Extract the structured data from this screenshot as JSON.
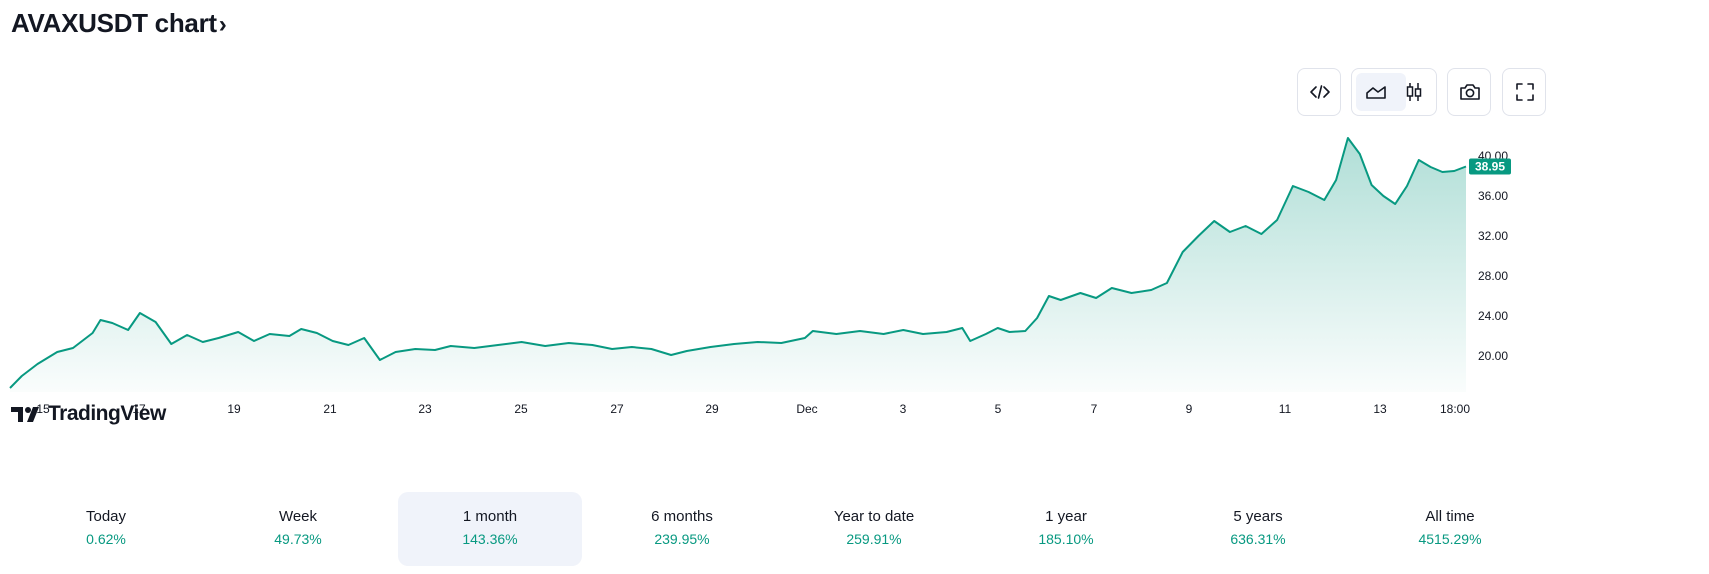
{
  "header": {
    "title": "AVAXUSDT chart",
    "chevron": "›"
  },
  "toolbar": [
    {
      "icon": "embed-code-icon"
    },
    {
      "icon": "area-chart-icon",
      "active": true
    },
    {
      "icon": "candlestick-icon"
    },
    {
      "icon": "camera-icon"
    },
    {
      "icon": "fullscreen-icon"
    }
  ],
  "watermark": {
    "text": "TradingView"
  },
  "chart_data": {
    "type": "area",
    "symbol": "AVAXUSDT",
    "color": "#089981",
    "x_ticks": [
      "15",
      "17",
      "19",
      "21",
      "23",
      "25",
      "27",
      "29",
      "Dec",
      "3",
      "5",
      "7",
      "9",
      "11",
      "13",
      "18:00"
    ],
    "y_ticks": [
      "20.00",
      "24.00",
      "28.00",
      "32.00",
      "36.00",
      "40.00"
    ],
    "ylim": [
      16.4,
      43.6
    ],
    "last_value": "38.95",
    "series": [
      {
        "points": [
          [
            "Nov 14 16:00",
            16.8
          ],
          [
            "Nov 14 22:00",
            18.0
          ],
          [
            "Nov 15 06:00",
            19.2
          ],
          [
            "Nov 15 16:00",
            20.4
          ],
          [
            "Nov 16 00:00",
            20.8
          ],
          [
            "Nov 16 10:00",
            22.3
          ],
          [
            "Nov 16 14:00",
            23.6
          ],
          [
            "Nov 16 20:00",
            23.3
          ],
          [
            "Nov 17 04:00",
            22.6
          ],
          [
            "Nov 17 10:00",
            24.3
          ],
          [
            "Nov 17 18:00",
            23.4
          ],
          [
            "Nov 18 02:00",
            21.2
          ],
          [
            "Nov 18 10:00",
            22.1
          ],
          [
            "Nov 18 18:00",
            21.4
          ],
          [
            "Nov 19 02:00",
            21.8
          ],
          [
            "Nov 19 12:00",
            22.4
          ],
          [
            "Nov 19 20:00",
            21.5
          ],
          [
            "Nov 20 04:00",
            22.2
          ],
          [
            "Nov 20 14:00",
            22.0
          ],
          [
            "Nov 20 20:00",
            22.7
          ],
          [
            "Nov 21 04:00",
            22.3
          ],
          [
            "Nov 21 12:00",
            21.5
          ],
          [
            "Nov 21 20:00",
            21.1
          ],
          [
            "Nov 22 04:00",
            21.8
          ],
          [
            "Nov 22 12:00",
            19.6
          ],
          [
            "Nov 22 20:00",
            20.4
          ],
          [
            "Nov 23 06:00",
            20.7
          ],
          [
            "Nov 23 16:00",
            20.6
          ],
          [
            "Nov 24 00:00",
            21.0
          ],
          [
            "Nov 24 12:00",
            20.8
          ],
          [
            "Nov 25 00:00",
            21.1
          ],
          [
            "Nov 25 12:00",
            21.4
          ],
          [
            "Nov 26 00:00",
            21.0
          ],
          [
            "Nov 26 12:00",
            21.3
          ],
          [
            "Nov 27 00:00",
            21.1
          ],
          [
            "Nov 27 10:00",
            20.7
          ],
          [
            "Nov 27 20:00",
            20.9
          ],
          [
            "Nov 28 06:00",
            20.7
          ],
          [
            "Nov 28 16:00",
            20.1
          ],
          [
            "Nov 29 00:00",
            20.5
          ],
          [
            "Nov 29 12:00",
            20.9
          ],
          [
            "Nov 30 00:00",
            21.2
          ],
          [
            "Nov 30 12:00",
            21.4
          ],
          [
            "Dec 1 00:00",
            21.3
          ],
          [
            "Dec 1 12:00",
            21.8
          ],
          [
            "Dec 1 16:00",
            22.5
          ],
          [
            "Dec 2 04:00",
            22.2
          ],
          [
            "Dec 2 16:00",
            22.5
          ],
          [
            "Dec 3 04:00",
            22.2
          ],
          [
            "Dec 3 14:00",
            22.6
          ],
          [
            "Dec 4 00:00",
            22.2
          ],
          [
            "Dec 4 12:00",
            22.4
          ],
          [
            "Dec 4 20:00",
            22.8
          ],
          [
            "Dec 5 00:00",
            21.5
          ],
          [
            "Dec 5 08:00",
            22.2
          ],
          [
            "Dec 5 14:00",
            22.8
          ],
          [
            "Dec 5 20:00",
            22.4
          ],
          [
            "Dec 6 04:00",
            22.5
          ],
          [
            "Dec 6 10:00",
            23.8
          ],
          [
            "Dec 6 16:00",
            26.0
          ],
          [
            "Dec 6 22:00",
            25.6
          ],
          [
            "Dec 7 08:00",
            26.3
          ],
          [
            "Dec 7 16:00",
            25.8
          ],
          [
            "Dec 8 00:00",
            26.8
          ],
          [
            "Dec 8 10:00",
            26.3
          ],
          [
            "Dec 8 20:00",
            26.6
          ],
          [
            "Dec 9 04:00",
            27.3
          ],
          [
            "Dec 9 12:00",
            30.4
          ],
          [
            "Dec 9 20:00",
            32.0
          ],
          [
            "Dec 10 04:00",
            33.5
          ],
          [
            "Dec 10 12:00",
            32.4
          ],
          [
            "Dec 10 20:00",
            33.0
          ],
          [
            "Dec 11 04:00",
            32.2
          ],
          [
            "Dec 11 12:00",
            33.6
          ],
          [
            "Dec 11 20:00",
            37.0
          ],
          [
            "Dec 12 04:00",
            36.4
          ],
          [
            "Dec 12 12:00",
            35.6
          ],
          [
            "Dec 12 18:00",
            37.6
          ],
          [
            "Dec 13 00:00",
            41.8
          ],
          [
            "Dec 13 06:00",
            40.2
          ],
          [
            "Dec 13 12:00",
            37.1
          ],
          [
            "Dec 13 18:00",
            36.0
          ],
          [
            "Dec 14 00:00",
            35.2
          ],
          [
            "Dec 14 06:00",
            37.0
          ],
          [
            "Dec 14 12:00",
            39.6
          ],
          [
            "Dec 14 18:00",
            38.9
          ],
          [
            "Dec 15 00:00",
            38.4
          ],
          [
            "Dec 15 06:00",
            38.5
          ],
          [
            "Dec 15 12:00",
            38.95
          ]
        ]
      }
    ]
  },
  "periods": [
    {
      "label": "Today",
      "value": "0.62%"
    },
    {
      "label": "Week",
      "value": "49.73%"
    },
    {
      "label": "1 month",
      "value": "143.36%",
      "active": true
    },
    {
      "label": "6 months",
      "value": "239.95%"
    },
    {
      "label": "Year to date",
      "value": "259.91%"
    },
    {
      "label": "1 year",
      "value": "185.10%"
    },
    {
      "label": "5 years",
      "value": "636.31%"
    },
    {
      "label": "All time",
      "value": "4515.29%"
    }
  ]
}
